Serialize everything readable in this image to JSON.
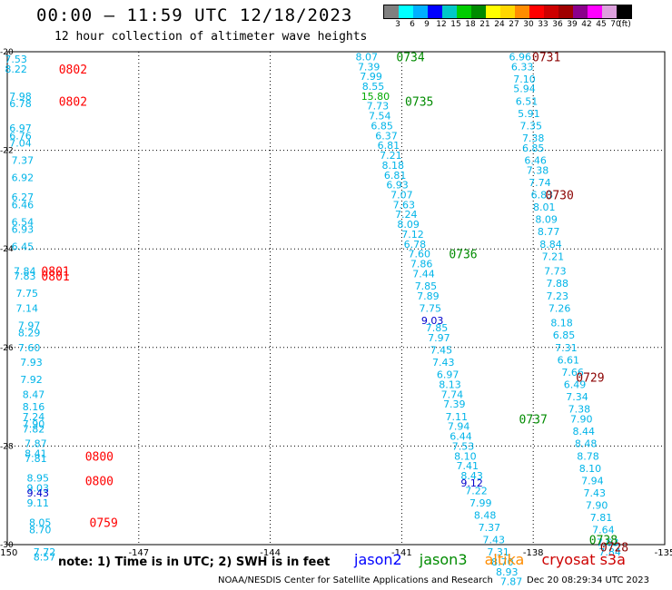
{
  "header": {
    "title": "00:00 — 11:59 UTC 12/18/2023",
    "subtitle": "12 hour collection of altimeter wave heights"
  },
  "colorbar": {
    "colors": [
      "#808080",
      "#00ffff",
      "#00b0ff",
      "#0000ff",
      "#00c8c8",
      "#00cd00",
      "#008b00",
      "#ffff00",
      "#ffd700",
      "#ff8c00",
      "#ff0000",
      "#cd0000",
      "#a00000",
      "#8b008b",
      "#ff00ff",
      "#dda0dd",
      "#000000"
    ],
    "labels": [
      "3",
      "6",
      "9",
      "12",
      "15",
      "18",
      "21",
      "24",
      "27",
      "30",
      "33",
      "36",
      "39",
      "42",
      "45",
      "70",
      "(ft)"
    ]
  },
  "note": "note: 1) Time is in UTC; 2) SWH is in feet",
  "missions": [
    {
      "name": "jason2",
      "color": "#0000ff"
    },
    {
      "name": "jason3",
      "color": "#008b00"
    },
    {
      "name": "altika",
      "color": "#ff8c00"
    },
    {
      "name": "cryosat s3a",
      "color": "#cd0000"
    }
  ],
  "footer": "NOAA/NESDIS Center for Satellite Applications and Research",
  "footer_time": "Dec 20 08:29:34 UTC 2023",
  "chart_data": {
    "type": "scatter",
    "title": "12 hour collection of altimeter wave heights",
    "xlim": [
      -150,
      -135
    ],
    "ylim": [
      -30,
      -20
    ],
    "x_ticks": [
      "-150",
      "-147",
      "-144",
      "-141",
      "-138",
      "-135"
    ],
    "y_ticks": [
      "-20",
      "-22",
      "-24",
      "-26",
      "-28",
      "-30"
    ],
    "grid": true,
    "track_colors": {
      "cyan": "#00b4e8",
      "blue": "#0000cc",
      "green": "#00aa00"
    },
    "time_colors": {
      "red": "#ff0000",
      "dark": "#8b0000",
      "green": "#008b00"
    },
    "series": [
      {
        "values": [
          {
            "x": -149.8,
            "y": -20.15,
            "v": "7.53"
          },
          {
            "x": -149.8,
            "y": -20.35,
            "v": "8.22"
          },
          {
            "x": -149.7,
            "y": -20.9,
            "v": "7.98"
          },
          {
            "x": -149.7,
            "y": -21.05,
            "v": "6.78"
          },
          {
            "x": -149.7,
            "y": -21.55,
            "v": "6.97"
          },
          {
            "x": -149.7,
            "y": -21.7,
            "v": "6.76"
          },
          {
            "x": -149.7,
            "y": -21.85,
            "v": "7.04"
          },
          {
            "x": -149.65,
            "y": -22.2,
            "v": "7.37"
          },
          {
            "x": -149.65,
            "y": -22.55,
            "v": "6.92"
          },
          {
            "x": -149.65,
            "y": -22.95,
            "v": "6.27"
          },
          {
            "x": -149.65,
            "y": -23.1,
            "v": "6.46"
          },
          {
            "x": -149.65,
            "y": -23.45,
            "v": "6.54"
          },
          {
            "x": -149.65,
            "y": -23.6,
            "v": "6.93"
          },
          {
            "x": -149.65,
            "y": -23.95,
            "v": "6.45"
          },
          {
            "x": -149.6,
            "y": -24.45,
            "v": "7.84"
          },
          {
            "x": -149.6,
            "y": -24.55,
            "v": "7.83"
          },
          {
            "x": -149.55,
            "y": -24.9,
            "v": "7.75"
          },
          {
            "x": -149.55,
            "y": -25.2,
            "v": "7.14"
          },
          {
            "x": -149.5,
            "y": -25.55,
            "v": "7.97"
          },
          {
            "x": -149.5,
            "y": -25.7,
            "v": "8.29"
          },
          {
            "x": -149.5,
            "y": -26.0,
            "v": "7.60"
          },
          {
            "x": -149.45,
            "y": -26.3,
            "v": "7.93"
          },
          {
            "x": -149.45,
            "y": -26.65,
            "v": "7.92"
          },
          {
            "x": -149.4,
            "y": -26.95,
            "v": "8.47"
          },
          {
            "x": -149.4,
            "y": -27.2,
            "v": "8.16"
          },
          {
            "x": -149.4,
            "y": -27.4,
            "v": "7.24"
          },
          {
            "x": -149.4,
            "y": -27.55,
            "v": "7.90"
          },
          {
            "x": -149.4,
            "y": -27.65,
            "v": "7.82"
          },
          {
            "x": -149.35,
            "y": -27.95,
            "v": "7.87"
          },
          {
            "x": -149.35,
            "y": -28.15,
            "v": "8.41"
          },
          {
            "x": -149.35,
            "y": -28.25,
            "v": "7.81"
          },
          {
            "x": -149.3,
            "y": -28.65,
            "v": "8.95"
          },
          {
            "x": -149.3,
            "y": -28.85,
            "v": "9.03"
          },
          {
            "x": -149.3,
            "y": -29.15,
            "v": "9.11"
          },
          {
            "x": -149.25,
            "y": -29.55,
            "v": "8.05"
          },
          {
            "x": -149.25,
            "y": -29.7,
            "v": "8.70"
          },
          {
            "x": -149.15,
            "y": -30.15,
            "v": "7.72"
          },
          {
            "x": -149.15,
            "y": -30.25,
            "v": "8.57"
          },
          {
            "x": -141.8,
            "y": -20.1,
            "v": "8.07"
          },
          {
            "x": -141.75,
            "y": -20.3,
            "v": "7.39"
          },
          {
            "x": -141.7,
            "y": -20.5,
            "v": "7.99"
          },
          {
            "x": -141.65,
            "y": -20.7,
            "v": "8.55"
          },
          {
            "x": -141.55,
            "y": -21.1,
            "v": "7.73"
          },
          {
            "x": -141.5,
            "y": -21.3,
            "v": "7.54"
          },
          {
            "x": -141.45,
            "y": -21.5,
            "v": "6.85"
          },
          {
            "x": -141.35,
            "y": -21.7,
            "v": "6.37"
          },
          {
            "x": -141.3,
            "y": -21.9,
            "v": "6.81"
          },
          {
            "x": -141.25,
            "y": -22.1,
            "v": "7.21"
          },
          {
            "x": -141.2,
            "y": -22.3,
            "v": "8.18"
          },
          {
            "x": -141.15,
            "y": -22.5,
            "v": "6.81"
          },
          {
            "x": -141.1,
            "y": -22.7,
            "v": "6.93"
          },
          {
            "x": -141.0,
            "y": -22.9,
            "v": "7.07"
          },
          {
            "x": -140.95,
            "y": -23.1,
            "v": "7.63"
          },
          {
            "x": -140.9,
            "y": -23.3,
            "v": "7.24"
          },
          {
            "x": -140.85,
            "y": -23.5,
            "v": "8.09"
          },
          {
            "x": -140.75,
            "y": -23.7,
            "v": "7.12"
          },
          {
            "x": -140.7,
            "y": -23.9,
            "v": "6.78"
          },
          {
            "x": -140.6,
            "y": -24.1,
            "v": "7.60"
          },
          {
            "x": -140.55,
            "y": -24.3,
            "v": "7.86"
          },
          {
            "x": -140.5,
            "y": -24.5,
            "v": "7.44"
          },
          {
            "x": -140.45,
            "y": -24.75,
            "v": "7.85"
          },
          {
            "x": -140.4,
            "y": -24.95,
            "v": "7.89"
          },
          {
            "x": -140.35,
            "y": -25.2,
            "v": "7.75"
          },
          {
            "x": -140.2,
            "y": -25.6,
            "v": "7.85"
          },
          {
            "x": -140.15,
            "y": -25.8,
            "v": "7.97"
          },
          {
            "x": -140.1,
            "y": -26.05,
            "v": "7.45"
          },
          {
            "x": -140.05,
            "y": -26.3,
            "v": "7.43"
          },
          {
            "x": -139.95,
            "y": -26.55,
            "v": "6.97"
          },
          {
            "x": -139.9,
            "y": -26.75,
            "v": "8.13"
          },
          {
            "x": -139.85,
            "y": -26.95,
            "v": "7.74"
          },
          {
            "x": -139.8,
            "y": -27.15,
            "v": "7.39"
          },
          {
            "x": -139.75,
            "y": -27.4,
            "v": "7.11"
          },
          {
            "x": -139.7,
            "y": -27.6,
            "v": "7.94"
          },
          {
            "x": -139.65,
            "y": -27.8,
            "v": "6.44"
          },
          {
            "x": -139.6,
            "y": -28.0,
            "v": "7.53"
          },
          {
            "x": -139.55,
            "y": -28.2,
            "v": "8.10"
          },
          {
            "x": -139.5,
            "y": -28.4,
            "v": "7.41"
          },
          {
            "x": -139.4,
            "y": -28.6,
            "v": "8.43"
          },
          {
            "x": -138.3,
            "y": -20.1,
            "v": "6.96"
          },
          {
            "x": -138.25,
            "y": -20.3,
            "v": "6.33"
          },
          {
            "x": -138.2,
            "y": -20.55,
            "v": "7.10"
          },
          {
            "x": -138.2,
            "y": -20.75,
            "v": "5.94"
          },
          {
            "x": -138.15,
            "y": -21.0,
            "v": "6.51"
          },
          {
            "x": -138.1,
            "y": -21.25,
            "v": "5.91"
          },
          {
            "x": -138.05,
            "y": -21.5,
            "v": "7.35"
          },
          {
            "x": -138.0,
            "y": -21.75,
            "v": "7.38"
          },
          {
            "x": -138.0,
            "y": -21.95,
            "v": "6.85"
          },
          {
            "x": -137.95,
            "y": -22.2,
            "v": "6.46"
          },
          {
            "x": -137.9,
            "y": -22.4,
            "v": "7.38"
          },
          {
            "x": -137.85,
            "y": -22.65,
            "v": "7.74"
          },
          {
            "x": -137.8,
            "y": -22.9,
            "v": "6.83"
          },
          {
            "x": -137.75,
            "y": -23.15,
            "v": "8.01"
          },
          {
            "x": -137.7,
            "y": -23.4,
            "v": "8.09"
          },
          {
            "x": -137.65,
            "y": -23.65,
            "v": "8.77"
          },
          {
            "x": -137.6,
            "y": -23.9,
            "v": "8.84"
          },
          {
            "x": -137.55,
            "y": -24.15,
            "v": "7.21"
          },
          {
            "x": -137.5,
            "y": -24.45,
            "v": "7.73"
          },
          {
            "x": -137.45,
            "y": -24.7,
            "v": "7.88"
          },
          {
            "x": -137.45,
            "y": -24.95,
            "v": "7.23"
          },
          {
            "x": -137.4,
            "y": -25.2,
            "v": "7.26"
          },
          {
            "x": -137.35,
            "y": -25.5,
            "v": "8.18"
          },
          {
            "x": -137.3,
            "y": -25.75,
            "v": "6.85"
          },
          {
            "x": -137.25,
            "y": -26.0,
            "v": "7.31"
          },
          {
            "x": -137.2,
            "y": -26.25,
            "v": "6.61"
          },
          {
            "x": -137.1,
            "y": -26.5,
            "v": "7.66"
          },
          {
            "x": -137.05,
            "y": -26.75,
            "v": "6.49"
          },
          {
            "x": -137.0,
            "y": -27.0,
            "v": "7.34"
          },
          {
            "x": -136.95,
            "y": -27.25,
            "v": "7.38"
          },
          {
            "x": -136.9,
            "y": -27.45,
            "v": "7.90"
          },
          {
            "x": -136.85,
            "y": -27.7,
            "v": "8.44"
          },
          {
            "x": -136.8,
            "y": -27.95,
            "v": "8.48"
          },
          {
            "x": -136.75,
            "y": -28.2,
            "v": "8.78"
          },
          {
            "x": -136.7,
            "y": -28.45,
            "v": "8.10"
          },
          {
            "x": -136.65,
            "y": -28.7,
            "v": "7.94"
          },
          {
            "x": -136.6,
            "y": -28.95,
            "v": "7.43"
          },
          {
            "x": -136.55,
            "y": -29.2,
            "v": "7.90"
          },
          {
            "x": -136.45,
            "y": -29.45,
            "v": "7.81"
          },
          {
            "x": -136.4,
            "y": -29.7,
            "v": "7.64"
          },
          {
            "x": -136.3,
            "y": -29.95,
            "v": "7.63"
          },
          {
            "x": -136.25,
            "y": -30.15,
            "v": "7.84"
          },
          {
            "x": -139.3,
            "y": -28.9,
            "v": "7.22"
          },
          {
            "x": -139.2,
            "y": -29.15,
            "v": "7.99"
          },
          {
            "x": -139.1,
            "y": -29.4,
            "v": "8.48"
          },
          {
            "x": -139.0,
            "y": -29.65,
            "v": "7.37"
          },
          {
            "x": -138.9,
            "y": -29.9,
            "v": "7.43"
          },
          {
            "x": -138.8,
            "y": -30.15,
            "v": "7.31"
          },
          {
            "x": -138.7,
            "y": -30.35,
            "v": "8.70"
          },
          {
            "x": -138.6,
            "y": -30.55,
            "v": "8.93"
          },
          {
            "x": -138.5,
            "y": -30.75,
            "v": "7.87"
          }
        ]
      },
      {
        "values": [
          {
            "x": -140.3,
            "y": -25.45,
            "v": "9.03"
          },
          {
            "x": -149.3,
            "y": -28.95,
            "v": "9.43"
          },
          {
            "x": -139.4,
            "y": -28.75,
            "v": "9.12"
          }
        ]
      },
      {
        "values": [
          {
            "x": -141.6,
            "y": -20.9,
            "v": "15.80"
          }
        ]
      }
    ],
    "time_labels": [
      {
        "x": -148.5,
        "y": -20.35,
        "t": "0802",
        "c": "red"
      },
      {
        "x": -148.5,
        "y": -21.0,
        "t": "0802",
        "c": "red"
      },
      {
        "x": -148.9,
        "y": -24.45,
        "t": "0801",
        "c": "red"
      },
      {
        "x": -148.9,
        "y": -24.55,
        "t": "0801",
        "c": "red"
      },
      {
        "x": -147.9,
        "y": -28.2,
        "t": "0800",
        "c": "red"
      },
      {
        "x": -147.9,
        "y": -28.7,
        "t": "0800",
        "c": "red"
      },
      {
        "x": -147.8,
        "y": -29.55,
        "t": "0759",
        "c": "red"
      },
      {
        "x": -140.8,
        "y": -20.1,
        "t": "0734",
        "c": "green"
      },
      {
        "x": -140.6,
        "y": -21.0,
        "t": "0735",
        "c": "green"
      },
      {
        "x": -139.6,
        "y": -24.1,
        "t": "0736",
        "c": "green"
      },
      {
        "x": -138.0,
        "y": -27.45,
        "t": "0737",
        "c": "green"
      },
      {
        "x": -136.4,
        "y": -29.9,
        "t": "0738",
        "c": "green"
      },
      {
        "x": -137.7,
        "y": -20.1,
        "t": "0731",
        "c": "dark"
      },
      {
        "x": -137.4,
        "y": -22.9,
        "t": "0730",
        "c": "dark"
      },
      {
        "x": -136.7,
        "y": -26.6,
        "t": "0729",
        "c": "dark"
      },
      {
        "x": -136.15,
        "y": -30.05,
        "t": "0728",
        "c": "dark"
      }
    ]
  }
}
